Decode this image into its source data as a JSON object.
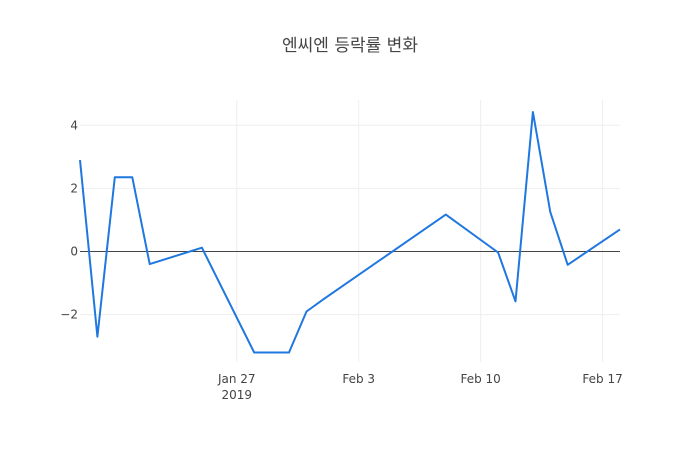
{
  "chart_data": {
    "type": "line",
    "title": "엔씨엔 등락률 변화",
    "xlabel": "",
    "ylabel": "",
    "x": [
      "2019-01-18",
      "2019-01-19",
      "2019-01-20",
      "2019-01-21",
      "2019-01-22",
      "2019-01-25",
      "2019-01-28",
      "2019-01-29",
      "2019-01-30",
      "2019-01-31",
      "2019-02-01",
      "2019-02-08",
      "2019-02-11",
      "2019-02-12",
      "2019-02-13",
      "2019-02-14",
      "2019-02-15",
      "2019-02-18"
    ],
    "series": [
      {
        "values": [
          2.9,
          -2.7,
          2.35,
          2.35,
          -0.4,
          0.12,
          -3.2,
          -3.2,
          -3.2,
          -1.9,
          -1.5,
          1.17,
          -0.03,
          -1.58,
          4.42,
          1.25,
          -0.42,
          0.7
        ]
      }
    ],
    "ylim": [
      -3.5,
      4.8
    ],
    "xlim": [
      "2019-01-18",
      "2019-02-18"
    ],
    "y_ticks": [
      {
        "value": -2,
        "label": "−2"
      },
      {
        "value": 0,
        "label": "0"
      },
      {
        "value": 2,
        "label": "2"
      },
      {
        "value": 4,
        "label": "4"
      }
    ],
    "x_ticks": [
      {
        "date": "2019-01-27",
        "label": "Jan 27",
        "sublabel": "2019"
      },
      {
        "date": "2019-02-03",
        "label": "Feb 3",
        "sublabel": ""
      },
      {
        "date": "2019-02-10",
        "label": "Feb 10",
        "sublabel": ""
      },
      {
        "date": "2019-02-17",
        "label": "Feb 17",
        "sublabel": ""
      }
    ],
    "grid": true,
    "zero_line": true,
    "line_color": "#1f77e0",
    "grid_color": "#eeeeee",
    "zero_line_color": "#444444"
  }
}
